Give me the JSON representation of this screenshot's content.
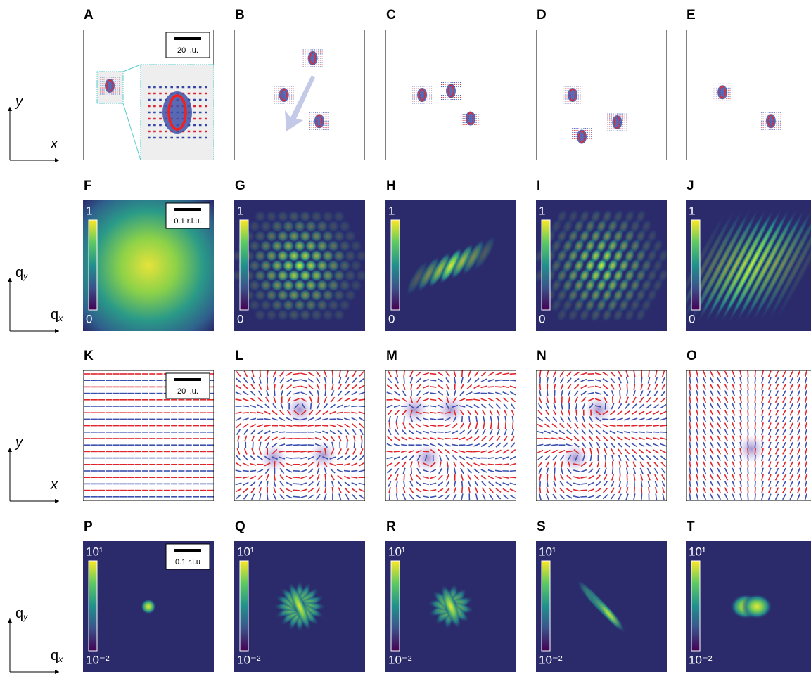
{
  "rows": [
    {
      "axes": {
        "y": {
          "base": "y"
        },
        "x": {
          "base": "x"
        }
      },
      "panels": [
        {
          "label": "A",
          "scale_bar": "20 l.u."
        },
        {
          "label": "B"
        },
        {
          "label": "C"
        },
        {
          "label": "D"
        },
        {
          "label": "E"
        }
      ]
    },
    {
      "axes": {
        "y": {
          "base": "q",
          "sub": "y"
        },
        "x": {
          "base": "q",
          "sub": "x"
        }
      },
      "panels": [
        {
          "label": "F",
          "scale_bar": "0.1 r.l.u.",
          "colorbar": {
            "max": "1",
            "min": "0"
          }
        },
        {
          "label": "G",
          "colorbar": {
            "max": "1",
            "min": "0"
          }
        },
        {
          "label": "H",
          "colorbar": {
            "max": "1",
            "min": "0"
          }
        },
        {
          "label": "I",
          "colorbar": {
            "max": "1",
            "min": "0"
          }
        },
        {
          "label": "J",
          "colorbar": {
            "max": "1",
            "min": "0"
          }
        }
      ]
    },
    {
      "axes": {
        "y": {
          "base": "y"
        },
        "x": {
          "base": "x"
        }
      },
      "panels": [
        {
          "label": "K",
          "scale_bar": "20 l.u."
        },
        {
          "label": "L"
        },
        {
          "label": "M"
        },
        {
          "label": "N"
        },
        {
          "label": "O"
        }
      ]
    },
    {
      "axes": {
        "y": {
          "base": "q",
          "sub": "y"
        },
        "x": {
          "base": "q",
          "sub": "x"
        }
      },
      "panels": [
        {
          "label": "P",
          "scale_bar": "0.1 r.l.u",
          "colorbar": {
            "max": "10¹",
            "min": "10⁻²"
          }
        },
        {
          "label": "Q",
          "colorbar": {
            "max": "10¹",
            "min": "10⁻²"
          }
        },
        {
          "label": "R",
          "colorbar": {
            "max": "10¹",
            "min": "10⁻²"
          }
        },
        {
          "label": "S",
          "colorbar": {
            "max": "10¹",
            "min": "10⁻²"
          }
        },
        {
          "label": "T",
          "colorbar": {
            "max": "10¹",
            "min": "10⁻²"
          }
        }
      ]
    }
  ]
}
